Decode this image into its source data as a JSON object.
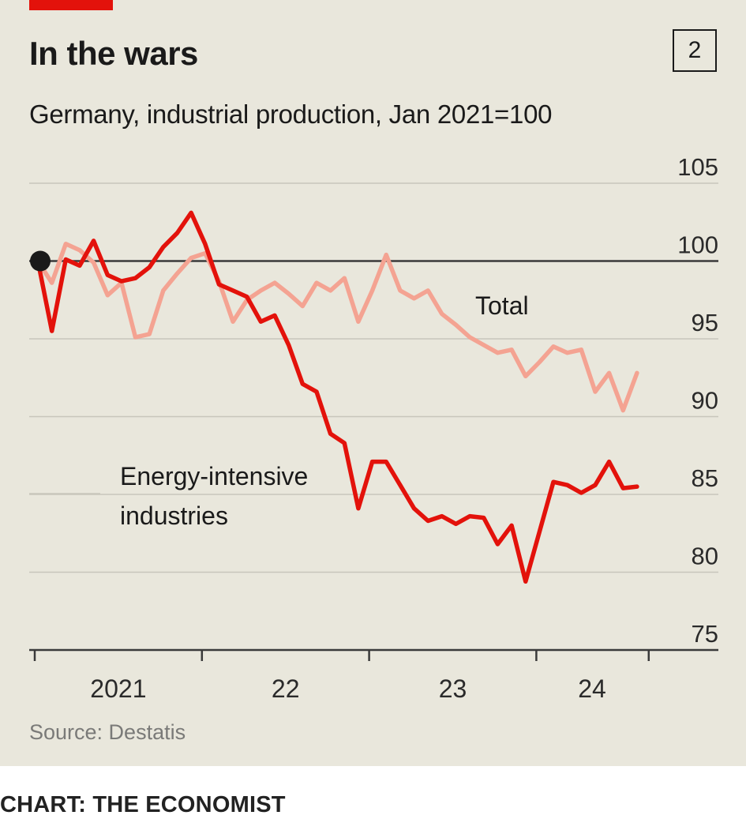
{
  "header": {
    "title": "In the wars",
    "chart_number": "2",
    "subtitle": "Germany, industrial production, Jan 2021=100"
  },
  "footer": {
    "source": "Source: Destatis",
    "credit": "CHART: THE ECONOMIST"
  },
  "colors": {
    "background": "#e9e7dc",
    "accent": "#e3120b",
    "energy_intensive": "#e3120b",
    "total": "#f4a392",
    "baseline": "#3a3a3a",
    "gridline": "#c8c6bb"
  },
  "chart_data": {
    "type": "line",
    "title": "In the wars",
    "subtitle": "Germany, industrial production, Jan 2021=100",
    "ylim": [
      75,
      105
    ],
    "yticks": [
      75,
      80,
      85,
      90,
      95,
      100,
      105
    ],
    "y_axis_position": "right",
    "baseline": 100,
    "grid": true,
    "x_tick_labels": [
      "2021",
      "22",
      "23",
      "24"
    ],
    "x_start": "2021-01",
    "series": [
      {
        "name": "Total",
        "values": [
          100,
          98.6,
          101.1,
          100.7,
          99.9,
          97.8,
          98.6,
          95.1,
          95.3,
          98.1,
          99.2,
          100.2,
          100.5,
          98.7,
          96.1,
          97.5,
          98.1,
          98.6,
          97.9,
          97.1,
          98.6,
          98.1,
          98.9,
          96.1,
          98.1,
          100.4,
          98.1,
          97.6,
          98.1,
          96.6,
          95.9,
          95.1,
          94.6,
          94.1,
          94.3,
          92.6,
          93.5,
          94.5,
          94.1,
          94.3,
          91.6,
          92.8,
          90.4,
          92.8
        ]
      },
      {
        "name": "Energy-intensive industries",
        "values": [
          100,
          95.5,
          100.1,
          99.7,
          101.3,
          99.1,
          98.7,
          98.9,
          99.6,
          100.9,
          101.8,
          103.1,
          101.1,
          98.5,
          98.1,
          97.7,
          96.1,
          96.5,
          94.6,
          92.1,
          91.6,
          88.9,
          88.3,
          84.1,
          87.1,
          87.1,
          85.6,
          84.1,
          83.3,
          83.6,
          83.1,
          83.6,
          83.5,
          81.8,
          83.0,
          79.4,
          82.6,
          85.8,
          85.6,
          85.1,
          85.6,
          87.1,
          85.4,
          85.5
        ]
      }
    ],
    "annotations": [
      {
        "text": "Total",
        "series": "Total"
      },
      {
        "text": "Energy-intensive\nindustries",
        "lines": [
          "Energy-intensive",
          "industries"
        ],
        "series": "Energy-intensive industries"
      }
    ],
    "start_marker": {
      "month_index": 0,
      "value": 100
    }
  }
}
